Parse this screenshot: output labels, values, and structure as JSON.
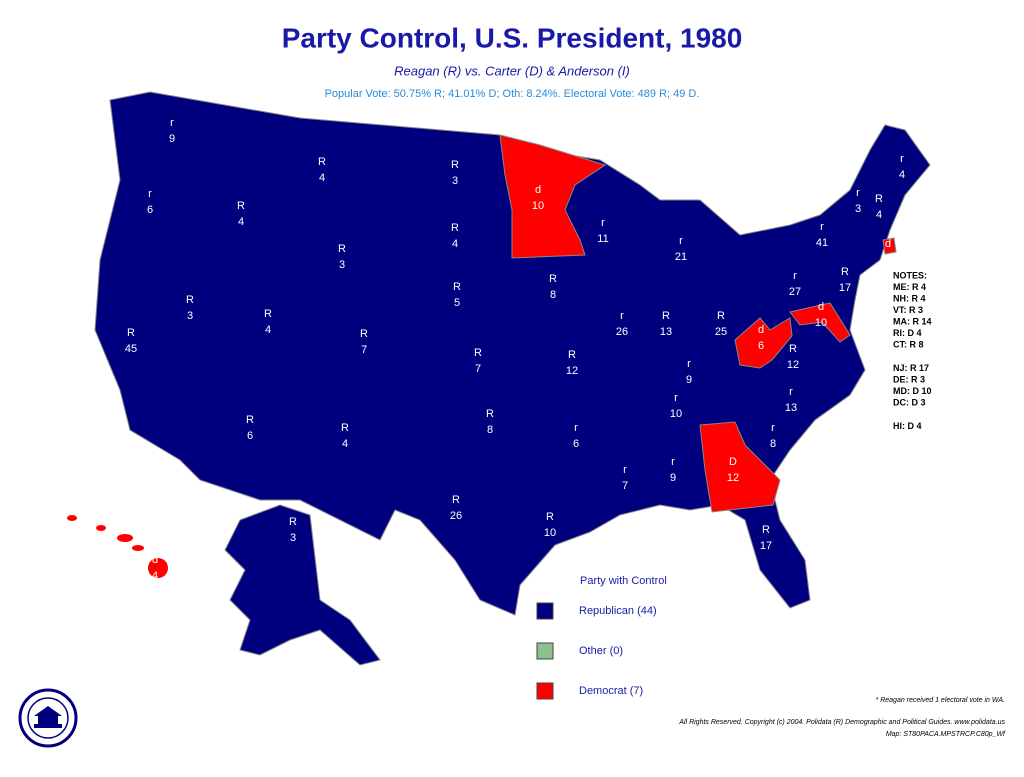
{
  "title": "Party Control, U.S. President, 1980",
  "subtitle": "Reagan (R) vs. Carter (D) & Anderson (I)",
  "summary": "Popular Vote: 50.75% R; 41.01% D; Oth: 8.24%. Electoral Vote: 489 R; 49 D.",
  "states": [
    {
      "party": "r",
      "votes": 9
    },
    {
      "party": "r",
      "votes": 6
    },
    {
      "party": "R",
      "votes": 45
    },
    {
      "party": "R",
      "votes": 3
    },
    {
      "party": "R",
      "votes": 4
    },
    {
      "party": "R",
      "votes": 4
    },
    {
      "party": "R",
      "votes": 3
    },
    {
      "party": "R",
      "votes": 4
    },
    {
      "party": "R",
      "votes": 6
    },
    {
      "party": "R",
      "votes": 7
    },
    {
      "party": "R",
      "votes": 4
    },
    {
      "party": "R",
      "votes": 3
    },
    {
      "party": "R",
      "votes": 4
    },
    {
      "party": "R",
      "votes": 5
    },
    {
      "party": "R",
      "votes": 7
    },
    {
      "party": "R",
      "votes": 8
    },
    {
      "party": "R",
      "votes": 26
    },
    {
      "party": "d",
      "votes": 10
    },
    {
      "party": "R",
      "votes": 8
    },
    {
      "party": "R",
      "votes": 12
    },
    {
      "party": "r",
      "votes": 6
    },
    {
      "party": "R",
      "votes": 10
    },
    {
      "party": "r",
      "votes": 11
    },
    {
      "party": "r",
      "votes": 26
    },
    {
      "party": "r",
      "votes": 21
    },
    {
      "party": "R",
      "votes": 13
    },
    {
      "party": "R",
      "votes": 25
    },
    {
      "party": "r",
      "votes": 9
    },
    {
      "party": "r",
      "votes": 10
    },
    {
      "party": "r",
      "votes": 7
    },
    {
      "party": "r",
      "votes": 9
    },
    {
      "party": "D",
      "votes": 12
    },
    {
      "party": "R",
      "votes": 17
    },
    {
      "party": "r",
      "votes": 8
    },
    {
      "party": "r",
      "votes": 13
    },
    {
      "party": "R",
      "votes": 12
    },
    {
      "party": "d",
      "votes": 6
    },
    {
      "party": "r",
      "votes": 27
    },
    {
      "party": "r",
      "votes": 41
    },
    {
      "party": "r",
      "votes": 4
    },
    {
      "party": "r",
      "votes": 3
    },
    {
      "party": "R",
      "votes": 4
    },
    {
      "party": "d",
      "votes": 10
    },
    {
      "party": "R",
      "votes": 17
    },
    {
      "party": "d",
      "votes": 4
    },
    {
      "party": "d",
      "votes": 4
    },
    {
      "party": "R",
      "votes": 3
    }
  ],
  "notes": [
    "NOTES:",
    "ME: R 4",
    "NH: R 4",
    "VT: R 3",
    "MA: R 14",
    "RI: D 4",
    "CT: R 8",
    "NJ: R 17",
    "DE: R 3",
    "MD: D 10",
    "DC: D 3",
    "HI: D 4"
  ],
  "legend": {
    "title": "Party with Control",
    "items": [
      {
        "label": "Republican (44)",
        "color": "#00007f"
      },
      {
        "label": "Other (0)",
        "color": "#8fbf8f"
      },
      {
        "label": "Democrat (7)",
        "color": "#ff0000"
      }
    ]
  },
  "footnote": "* Reagan received 1 electoral vote in WA.",
  "copyright": [
    "All Rights Reserved. Copyright (c) 2004. Polidata (R) Demographic and Political Guides. www.polidata.us",
    "Map: ST80PACA.MPSTRCP.C80p_Wf"
  ]
}
